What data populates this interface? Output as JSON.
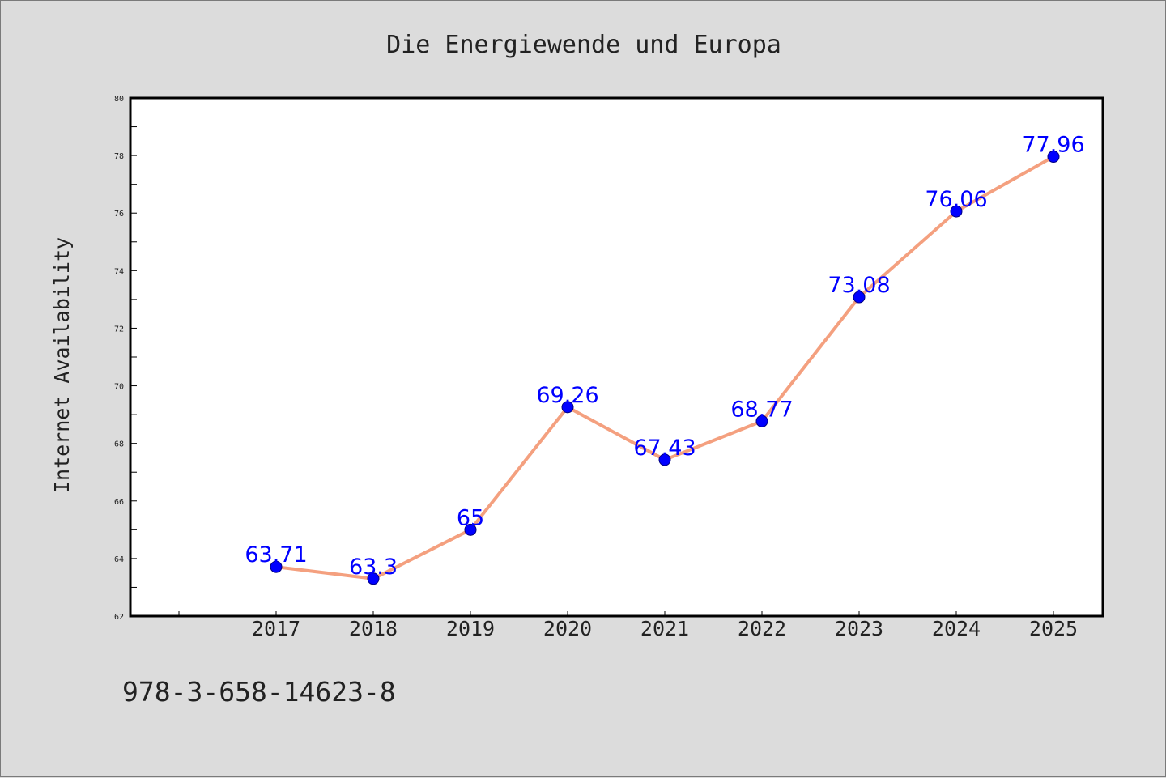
{
  "colors": {
    "background": "#dcdcdc",
    "plot_background": "#ffffff",
    "line": "#f4a07f",
    "marker": "#0000ff",
    "data_label": "#0000ff",
    "axis": "#000000"
  },
  "footer": {
    "isbn": "978-3-658-14623-8"
  },
  "chart_data": {
    "type": "line",
    "title": "Die Energiewende und Europa",
    "xlabel": "",
    "ylabel": "Internet Availability",
    "categories": [
      "2017",
      "2018",
      "2019",
      "2020",
      "2021",
      "2022",
      "2023",
      "2024",
      "2025"
    ],
    "series": [
      {
        "values": [
          63.71,
          63.3,
          65,
          69.26,
          67.43,
          68.77,
          73.08,
          76.06,
          77.96
        ],
        "labels": [
          "63.71",
          "63.3",
          "65",
          "69.26",
          "67.43",
          "68.77",
          "73.08",
          "76.06",
          "77.96"
        ]
      }
    ],
    "ylim": [
      62,
      80
    ],
    "yticks": [
      "62",
      "64",
      "66",
      "68",
      "70",
      "72",
      "74",
      "76",
      "78",
      "80"
    ],
    "grid": false,
    "legend": "none",
    "markers": "circle"
  }
}
